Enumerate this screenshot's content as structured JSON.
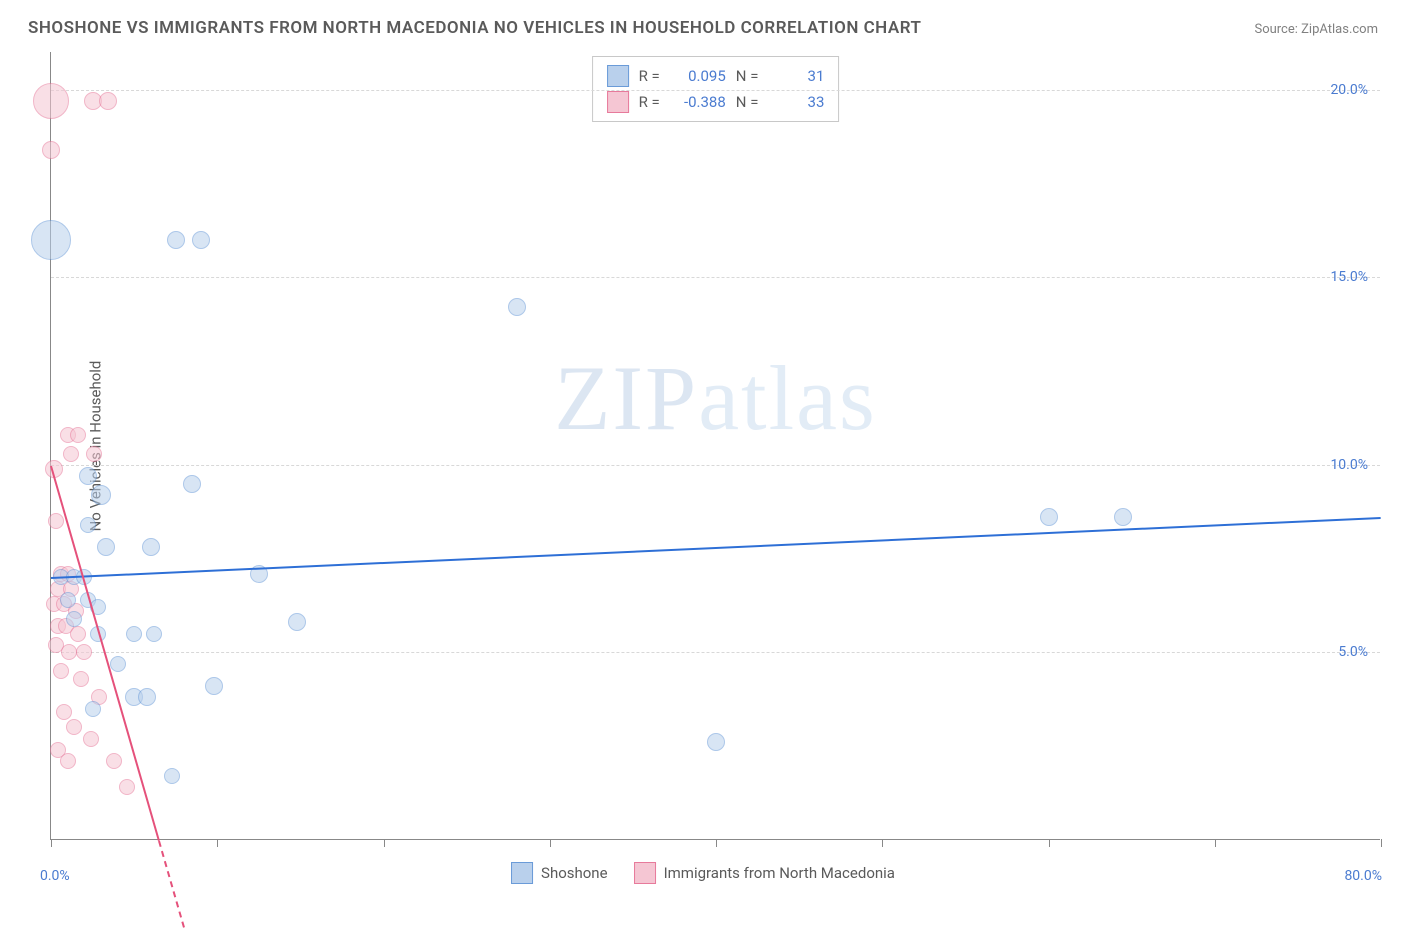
{
  "title": "SHOSHONE VS IMMIGRANTS FROM NORTH MACEDONIA NO VEHICLES IN HOUSEHOLD CORRELATION CHART",
  "source": "Source: ZipAtlas.com",
  "y_axis_label": "No Vehicles in Household",
  "watermark": {
    "part1": "ZIP",
    "part2": "atlas"
  },
  "chart": {
    "type": "scatter",
    "xlim": [
      0,
      80
    ],
    "ylim": [
      0,
      21
    ],
    "x_tick_positions": [
      0,
      10,
      20,
      30,
      40,
      50,
      60,
      70,
      80
    ],
    "x_label_min": "0.0%",
    "x_label_max": "80.0%",
    "y_ticks": [
      {
        "v": 5,
        "label": "5.0%"
      },
      {
        "v": 10,
        "label": "10.0%"
      },
      {
        "v": 15,
        "label": "15.0%"
      },
      {
        "v": 20,
        "label": "20.0%"
      }
    ],
    "grid_color": "#d8d8d8",
    "background_color": "#ffffff",
    "series": [
      {
        "name": "Shoshone",
        "fill": "#b9d0ec",
        "stroke": "#6a9bd8",
        "fill_opacity": 0.55,
        "trend": {
          "color": "#2e6fd6",
          "width": 2,
          "x0": 0,
          "y0": 7.0,
          "x1": 80,
          "y1": 8.6
        },
        "stats": {
          "R": "0.095",
          "N": "31"
        },
        "points": [
          {
            "x": 0.0,
            "y": 16.0,
            "r": 20
          },
          {
            "x": 7.5,
            "y": 16.0,
            "r": 9
          },
          {
            "x": 9.0,
            "y": 16.0,
            "r": 9
          },
          {
            "x": 28.0,
            "y": 14.2,
            "r": 9
          },
          {
            "x": 2.2,
            "y": 9.7,
            "r": 9
          },
          {
            "x": 3.0,
            "y": 9.2,
            "r": 10
          },
          {
            "x": 8.5,
            "y": 9.5,
            "r": 9
          },
          {
            "x": 60.0,
            "y": 8.6,
            "r": 9
          },
          {
            "x": 64.5,
            "y": 8.6,
            "r": 9
          },
          {
            "x": 3.3,
            "y": 7.8,
            "r": 9
          },
          {
            "x": 6.0,
            "y": 7.8,
            "r": 9
          },
          {
            "x": 0.6,
            "y": 7.0,
            "r": 8
          },
          {
            "x": 1.4,
            "y": 7.0,
            "r": 8
          },
          {
            "x": 2.0,
            "y": 7.0,
            "r": 8
          },
          {
            "x": 12.5,
            "y": 7.1,
            "r": 9
          },
          {
            "x": 1.0,
            "y": 6.4,
            "r": 8
          },
          {
            "x": 2.2,
            "y": 6.4,
            "r": 8
          },
          {
            "x": 2.8,
            "y": 6.2,
            "r": 8
          },
          {
            "x": 14.8,
            "y": 5.8,
            "r": 9
          },
          {
            "x": 2.8,
            "y": 5.5,
            "r": 8
          },
          {
            "x": 5.0,
            "y": 5.5,
            "r": 8
          },
          {
            "x": 6.2,
            "y": 5.5,
            "r": 8
          },
          {
            "x": 9.8,
            "y": 4.1,
            "r": 9
          },
          {
            "x": 5.0,
            "y": 3.8,
            "r": 9
          },
          {
            "x": 5.8,
            "y": 3.8,
            "r": 9
          },
          {
            "x": 2.5,
            "y": 3.5,
            "r": 8
          },
          {
            "x": 40.0,
            "y": 2.6,
            "r": 9
          },
          {
            "x": 7.3,
            "y": 1.7,
            "r": 8
          },
          {
            "x": 2.2,
            "y": 8.4,
            "r": 8
          },
          {
            "x": 1.4,
            "y": 5.9,
            "r": 8
          },
          {
            "x": 4.0,
            "y": 4.7,
            "r": 8
          }
        ]
      },
      {
        "name": "Immigrants from North Macedonia",
        "fill": "#f5c6d3",
        "stroke": "#e77a9b",
        "fill_opacity": 0.55,
        "trend": {
          "color": "#e5517b",
          "width": 2,
          "x0": 0,
          "y0": 10.0,
          "x1": 6.5,
          "y1": 0.0,
          "dashed_ext": {
            "x1": 8.0,
            "y1": -2.3
          }
        },
        "stats": {
          "R": "-0.388",
          "N": "33"
        },
        "points": [
          {
            "x": 0.0,
            "y": 19.7,
            "r": 18
          },
          {
            "x": 2.5,
            "y": 19.7,
            "r": 9
          },
          {
            "x": 3.4,
            "y": 19.7,
            "r": 9
          },
          {
            "x": 0.0,
            "y": 18.4,
            "r": 9
          },
          {
            "x": 1.0,
            "y": 10.8,
            "r": 8
          },
          {
            "x": 1.6,
            "y": 10.8,
            "r": 8
          },
          {
            "x": 1.2,
            "y": 10.3,
            "r": 8
          },
          {
            "x": 2.6,
            "y": 10.3,
            "r": 8
          },
          {
            "x": 0.2,
            "y": 9.9,
            "r": 9
          },
          {
            "x": 0.3,
            "y": 8.5,
            "r": 8
          },
          {
            "x": 0.6,
            "y": 7.1,
            "r": 8
          },
          {
            "x": 1.0,
            "y": 7.1,
            "r": 8
          },
          {
            "x": 0.4,
            "y": 6.7,
            "r": 8
          },
          {
            "x": 1.2,
            "y": 6.7,
            "r": 8
          },
          {
            "x": 0.2,
            "y": 6.3,
            "r": 8
          },
          {
            "x": 0.8,
            "y": 6.3,
            "r": 8
          },
          {
            "x": 1.5,
            "y": 6.1,
            "r": 8
          },
          {
            "x": 0.4,
            "y": 5.7,
            "r": 8
          },
          {
            "x": 0.9,
            "y": 5.7,
            "r": 8
          },
          {
            "x": 1.6,
            "y": 5.5,
            "r": 8
          },
          {
            "x": 0.3,
            "y": 5.2,
            "r": 8
          },
          {
            "x": 1.1,
            "y": 5.0,
            "r": 8
          },
          {
            "x": 2.0,
            "y": 5.0,
            "r": 8
          },
          {
            "x": 0.6,
            "y": 4.5,
            "r": 8
          },
          {
            "x": 1.8,
            "y": 4.3,
            "r": 8
          },
          {
            "x": 2.9,
            "y": 3.8,
            "r": 8
          },
          {
            "x": 0.8,
            "y": 3.4,
            "r": 8
          },
          {
            "x": 1.4,
            "y": 3.0,
            "r": 8
          },
          {
            "x": 2.4,
            "y": 2.7,
            "r": 8
          },
          {
            "x": 0.4,
            "y": 2.4,
            "r": 8
          },
          {
            "x": 3.8,
            "y": 2.1,
            "r": 8
          },
          {
            "x": 1.0,
            "y": 2.1,
            "r": 8
          },
          {
            "x": 4.6,
            "y": 1.4,
            "r": 8
          }
        ]
      }
    ]
  },
  "stats_legend": {
    "rows": [
      {
        "swatch_fill": "#b9d0ec",
        "swatch_stroke": "#6a9bd8",
        "R_label": "R =",
        "R": "0.095",
        "N_label": "N =",
        "N": "31"
      },
      {
        "swatch_fill": "#f5c6d3",
        "swatch_stroke": "#e77a9b",
        "R_label": "R =",
        "R": "-0.388",
        "N_label": "N =",
        "N": "33"
      }
    ]
  },
  "bottom_legend": {
    "items": [
      {
        "swatch_fill": "#b9d0ec",
        "swatch_stroke": "#6a9bd8",
        "label": "Shoshone"
      },
      {
        "swatch_fill": "#f5c6d3",
        "swatch_stroke": "#e77a9b",
        "label": "Immigrants from North Macedonia"
      }
    ]
  }
}
